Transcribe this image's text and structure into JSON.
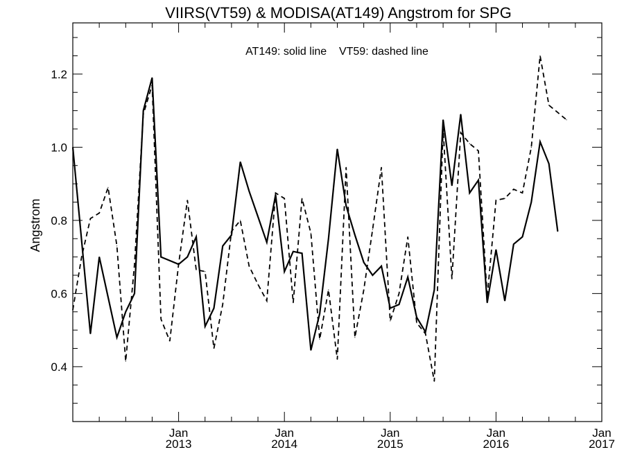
{
  "chart_data": {
    "type": "line",
    "title": "VIIRS(VT59) & MODISA(AT149)  Angstrom for SPG",
    "annotation": "AT149: solid line    VT59: dashed line",
    "xlabel": "",
    "ylabel": "Angstrom",
    "ylim": [
      0.25,
      1.34
    ],
    "xlim": [
      "2012-01",
      "2017-01"
    ],
    "y_ticks": [
      "0.4",
      "0.6",
      "0.8",
      "1.0",
      "1.2"
    ],
    "x_ticks": [
      {
        "top": "Jan",
        "bottom": "2013",
        "date": "2013-01"
      },
      {
        "top": "Jan",
        "bottom": "2014",
        "date": "2014-01"
      },
      {
        "top": "Jan",
        "bottom": "2015",
        "date": "2015-01"
      },
      {
        "top": "Jan",
        "bottom": "2016",
        "date": "2016-01"
      },
      {
        "top": "Jan",
        "bottom": "2017",
        "date": "2017-01"
      }
    ],
    "grid": false,
    "series": [
      {
        "name": "AT149",
        "style": "solid",
        "points": [
          [
            "2012-01",
            1.0
          ],
          [
            "2012-03",
            0.49
          ],
          [
            "2012-04",
            0.7
          ],
          [
            "2012-05",
            0.59
          ],
          [
            "2012-06",
            0.48
          ],
          [
            "2012-07",
            0.55
          ],
          [
            "2012-08",
            0.6
          ],
          [
            "2012-09",
            1.1
          ],
          [
            "2012-10",
            1.19
          ],
          [
            "2012-11",
            0.7
          ],
          [
            "2012-12",
            0.69
          ],
          [
            "2013-01",
            0.68
          ],
          [
            "2013-02",
            0.7
          ],
          [
            "2013-03",
            0.755
          ],
          [
            "2013-04",
            0.51
          ],
          [
            "2013-05",
            0.56
          ],
          [
            "2013-06",
            0.73
          ],
          [
            "2013-07",
            0.76
          ],
          [
            "2013-08",
            0.96
          ],
          [
            "2013-09",
            0.88
          ],
          [
            "2013-10",
            0.81
          ],
          [
            "2013-11",
            0.74
          ],
          [
            "2013-12",
            0.87
          ],
          [
            "2014-01",
            0.66
          ],
          [
            "2014-02",
            0.715
          ],
          [
            "2014-03",
            0.71
          ],
          [
            "2014-04",
            0.445
          ],
          [
            "2014-05",
            0.545
          ],
          [
            "2014-06",
            0.75
          ],
          [
            "2014-07",
            0.995
          ],
          [
            "2014-08",
            0.84
          ],
          [
            "2014-09",
            0.76
          ],
          [
            "2014-10",
            0.685
          ],
          [
            "2014-11",
            0.65
          ],
          [
            "2014-12",
            0.675
          ],
          [
            "2015-01",
            0.56
          ],
          [
            "2015-02",
            0.57
          ],
          [
            "2015-03",
            0.645
          ],
          [
            "2015-04",
            0.535
          ],
          [
            "2015-05",
            0.495
          ],
          [
            "2015-06",
            0.61
          ],
          [
            "2015-07",
            1.075
          ],
          [
            "2015-08",
            0.895
          ],
          [
            "2015-09",
            1.09
          ],
          [
            "2015-10",
            0.875
          ],
          [
            "2015-11",
            0.91
          ],
          [
            "2015-12",
            0.575
          ],
          [
            "2016-01",
            0.72
          ],
          [
            "2016-02",
            0.58
          ],
          [
            "2016-03",
            0.735
          ],
          [
            "2016-04",
            0.755
          ],
          [
            "2016-05",
            0.85
          ],
          [
            "2016-06",
            1.015
          ],
          [
            "2016-07",
            0.955
          ],
          [
            "2016-08",
            0.77
          ]
        ]
      },
      {
        "name": "VT59",
        "style": "dashed",
        "points": [
          [
            "2012-01",
            0.555
          ],
          [
            "2012-02",
            0.7
          ],
          [
            "2012-03",
            0.805
          ],
          [
            "2012-04",
            0.82
          ],
          [
            "2012-05",
            0.89
          ],
          [
            "2012-06",
            0.73
          ],
          [
            "2012-07",
            0.415
          ],
          [
            "2012-08",
            0.68
          ],
          [
            "2012-09",
            1.09
          ],
          [
            "2012-10",
            1.17
          ],
          [
            "2012-11",
            0.53
          ],
          [
            "2012-12",
            0.47
          ],
          [
            "2013-01",
            0.68
          ],
          [
            "2013-02",
            0.855
          ],
          [
            "2013-03",
            0.665
          ],
          [
            "2013-04",
            0.66
          ],
          [
            "2013-05",
            0.45
          ],
          [
            "2013-06",
            0.57
          ],
          [
            "2013-07",
            0.77
          ],
          [
            "2013-08",
            0.8
          ],
          [
            "2013-09",
            0.675
          ],
          [
            "2013-10",
            0.625
          ],
          [
            "2013-11",
            0.58
          ],
          [
            "2013-12",
            0.875
          ],
          [
            "2014-01",
            0.86
          ],
          [
            "2014-02",
            0.575
          ],
          [
            "2014-03",
            0.86
          ],
          [
            "2014-04",
            0.765
          ],
          [
            "2014-05",
            0.475
          ],
          [
            "2014-06",
            0.61
          ],
          [
            "2014-07",
            0.42
          ],
          [
            "2014-08",
            0.945
          ],
          [
            "2014-09",
            0.48
          ],
          [
            "2014-10",
            0.61
          ],
          [
            "2014-11",
            0.775
          ],
          [
            "2014-12",
            0.945
          ],
          [
            "2015-01",
            0.525
          ],
          [
            "2015-02",
            0.6
          ],
          [
            "2015-03",
            0.755
          ],
          [
            "2015-04",
            0.52
          ],
          [
            "2015-05",
            0.49
          ],
          [
            "2015-06",
            0.36
          ],
          [
            "2015-07",
            1.05
          ],
          [
            "2015-08",
            0.64
          ],
          [
            "2015-09",
            1.04
          ],
          [
            "2015-10",
            1.01
          ],
          [
            "2015-11",
            0.99
          ],
          [
            "2015-12",
            0.59
          ],
          [
            "2016-01",
            0.855
          ],
          [
            "2016-02",
            0.86
          ],
          [
            "2016-03",
            0.885
          ],
          [
            "2016-04",
            0.875
          ],
          [
            "2016-05",
            1.0
          ],
          [
            "2016-06",
            1.25
          ],
          [
            "2016-07",
            1.115
          ],
          [
            "2016-08",
            1.095
          ],
          [
            "2016-09",
            1.075
          ]
        ]
      }
    ]
  }
}
